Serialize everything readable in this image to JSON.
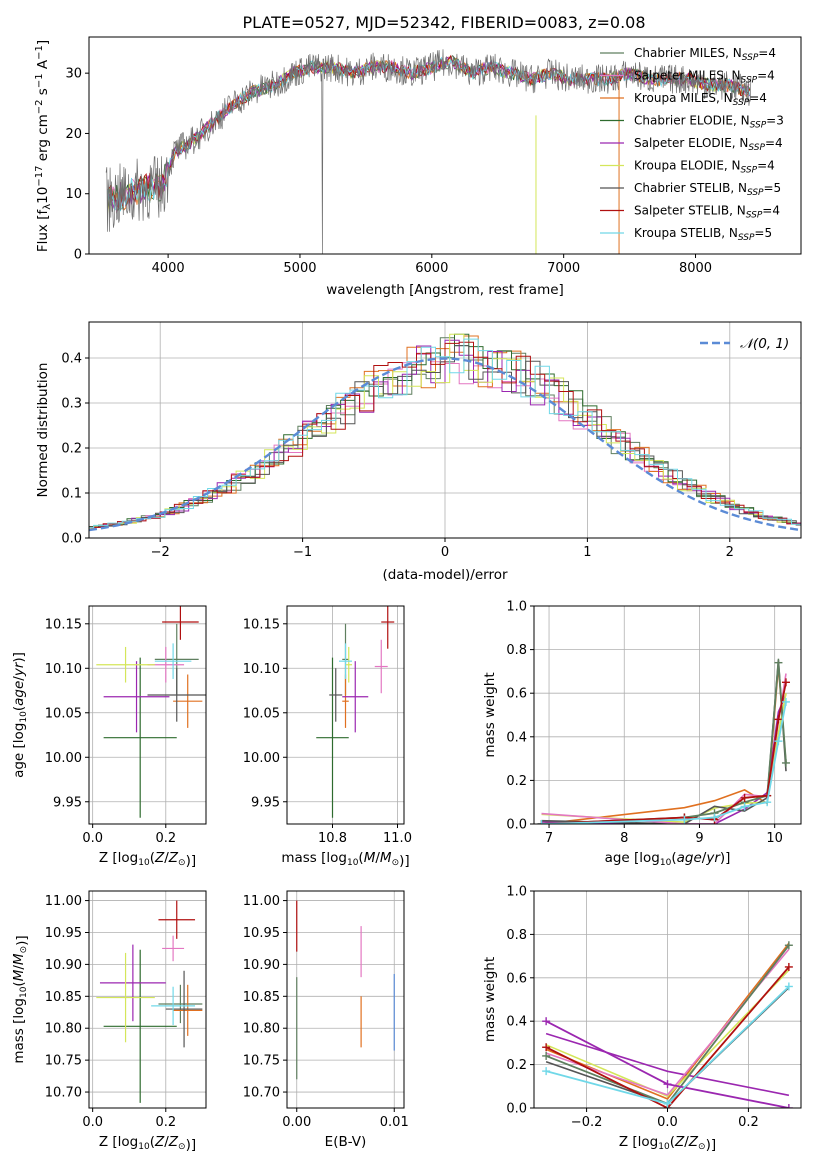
{
  "title": "PLATE=0527, MJD=52342, FIBERID=0083, z=0.08",
  "legend": [
    {
      "label": "Chabrier MILES, N",
      "sub": "SSP",
      "tail": "=4",
      "color": "#5f7f5f"
    },
    {
      "label": "Salpeter MILES, N",
      "sub": "SSP",
      "tail": "=4",
      "color": "#e377c2"
    },
    {
      "label": "Kroupa MILES, N",
      "sub": "SSP",
      "tail": "=4",
      "color": "#e07020"
    },
    {
      "label": "Chabrier ELODIE, N",
      "sub": "SSP",
      "tail": "=3",
      "color": "#2e6b2e"
    },
    {
      "label": "Salpeter ELODIE, N",
      "sub": "SSP",
      "tail": "=4",
      "color": "#9b27b0"
    },
    {
      "label": "Kroupa ELODIE, N",
      "sub": "SSP",
      "tail": "=4",
      "color": "#d4e65a"
    },
    {
      "label": "Chabrier STELIB, N",
      "sub": "SSP",
      "tail": "=5",
      "color": "#555555"
    },
    {
      "label": "Salpeter STELIB, N",
      "sub": "SSP",
      "tail": "=4",
      "color": "#b01010"
    },
    {
      "label": "Kroupa STELIB, N",
      "sub": "SSP",
      "tail": "=5",
      "color": "#70d8e8"
    }
  ],
  "panels": {
    "spectrum": {
      "xlabel": "wavelength [Angstrom, rest frame]",
      "ylabel_pre": "Flux [f",
      "ylabel_lam": "λ",
      "ylabel_post": "10",
      "ylabel_exp1": "−17",
      "ylabel_mid": " erg cm",
      "ylabel_exp2": "−2",
      "ylabel_mid2": " s",
      "ylabel_exp3": "−1",
      "ylabel_mid3": " A",
      "ylabel_exp4": "−1",
      "ylabel_end": "]",
      "xticks": [
        "4000",
        "5000",
        "6000",
        "7000",
        "8000"
      ],
      "yticks": [
        "0",
        "10",
        "20",
        "30"
      ]
    },
    "residuals": {
      "xlabel": "(data-model)/error",
      "ylabel": "Normed distribution",
      "legend": "𝒩(0, 1)",
      "xticks": [
        "−2",
        "−1",
        "0",
        "1",
        "2"
      ],
      "yticks": [
        "0.0",
        "0.1",
        "0.2",
        "0.3",
        "0.4"
      ]
    },
    "age_Z": {
      "xlabel": "Z [log",
      "ylabel": "age  [log",
      "xticks": [
        "0.0",
        "0.2"
      ],
      "yticks": [
        "9.95",
        "10.00",
        "10.05",
        "10.10",
        "10.15"
      ]
    },
    "age_mass": {
      "xlabel": "mass [log",
      "xticks": [
        "10.8",
        "11.0"
      ],
      "yticks": [
        "9.95",
        "10.00",
        "10.05",
        "10.10",
        "10.15"
      ]
    },
    "weight_age": {
      "xlabel": "age  [log",
      "ylabel": "mass weight",
      "xticks": [
        "7",
        "8",
        "9",
        "10"
      ],
      "yticks": [
        "0.0",
        "0.2",
        "0.4",
        "0.6",
        "0.8",
        "1.0"
      ]
    },
    "mass_Z": {
      "xlabel": "Z [log",
      "ylabel": "mass [log",
      "xticks": [
        "0.0",
        "0.2"
      ],
      "yticks": [
        "10.70",
        "10.75",
        "10.80",
        "10.85",
        "10.90",
        "10.95",
        "11.00"
      ]
    },
    "mass_ebv": {
      "xlabel": "E(B-V)",
      "xticks": [
        "0.00",
        "0.01"
      ],
      "yticks": [
        "10.70",
        "10.75",
        "10.80",
        "10.85",
        "10.90",
        "10.95",
        "11.00"
      ]
    },
    "weight_Z": {
      "xlabel": "Z [log",
      "ylabel": "mass weight",
      "xticks": [
        "−0.2",
        "0.0",
        "0.2"
      ],
      "yticks": [
        "0.0",
        "0.2",
        "0.4",
        "0.6",
        "0.8",
        "1.0"
      ]
    }
  },
  "chart_data": [
    {
      "type": "line",
      "title": "PLATE=0527, MJD=52342, FIBERID=0083, z=0.08",
      "xlim": [
        3400,
        8800
      ],
      "ylim": [
        0,
        36
      ],
      "x": [
        3550,
        3700,
        3850,
        3950,
        4050,
        4200,
        4350,
        4500,
        4650,
        4800,
        4950,
        5100,
        5250,
        5400,
        5550,
        5700,
        5850,
        6000,
        6150,
        6300,
        6450,
        6600,
        6750,
        6900,
        7050,
        7200,
        7350,
        7500,
        7650,
        7800,
        7950,
        8100,
        8250,
        8400
      ],
      "series": [
        {
          "name": "data",
          "values": [
            9,
            10,
            11,
            11,
            17,
            19,
            22,
            25,
            27,
            28,
            30,
            31,
            31,
            30,
            31,
            31,
            30,
            31,
            32,
            30,
            31,
            30,
            29,
            30,
            29,
            29,
            29,
            30,
            29,
            29,
            29,
            28,
            28,
            27
          ]
        }
      ]
    },
    {
      "type": "line",
      "xlim": [
        -2.5,
        2.5
      ],
      "ylim": [
        0,
        0.48
      ],
      "x": [
        -2.5,
        -2.0,
        -1.5,
        -1.0,
        -0.5,
        0.0,
        0.5,
        1.0,
        1.5,
        2.0,
        2.5
      ],
      "series": [
        {
          "name": "𝒩(0, 1)",
          "values": [
            0.018,
            0.054,
            0.13,
            0.242,
            0.352,
            0.399,
            0.352,
            0.242,
            0.13,
            0.054,
            0.018
          ]
        }
      ]
    },
    {
      "type": "scatter",
      "xlim": [
        -0.01,
        0.31
      ],
      "ylim": [
        9.925,
        10.17
      ],
      "points": [
        {
          "x": 0.23,
          "y": 10.11,
          "xerr": 0.06,
          "yerr": 0.04
        },
        {
          "x": 0.2,
          "y": 10.104,
          "xerr": 0.05,
          "yerr": 0.02
        },
        {
          "x": 0.26,
          "y": 10.063,
          "xerr": 0.04,
          "yerr": 0.03
        },
        {
          "x": 0.13,
          "y": 10.022,
          "xerr": 0.1,
          "yerr": 0.09
        },
        {
          "x": 0.12,
          "y": 10.068,
          "xerr": 0.09,
          "yerr": 0.04
        },
        {
          "x": 0.09,
          "y": 10.104,
          "xerr": 0.08,
          "yerr": 0.02
        },
        {
          "x": 0.23,
          "y": 10.07,
          "xerr": 0.08,
          "yerr": 0.03
        },
        {
          "x": 0.24,
          "y": 10.152,
          "xerr": 0.05,
          "yerr": 0.02
        },
        {
          "x": 0.22,
          "y": 10.108,
          "xerr": 0.05,
          "yerr": 0.02
        }
      ]
    },
    {
      "type": "scatter",
      "xlim": [
        10.66,
        11.02
      ],
      "ylim": [
        9.925,
        10.17
      ],
      "points": [
        {
          "x": 10.84,
          "y": 10.11,
          "xerr": 0.01,
          "yerr": 0.04
        },
        {
          "x": 10.95,
          "y": 10.102,
          "xerr": 0.02,
          "yerr": 0.03
        },
        {
          "x": 10.84,
          "y": 10.063,
          "xerr": 0.01,
          "yerr": 0.03
        },
        {
          "x": 10.8,
          "y": 10.022,
          "xerr": 0.05,
          "yerr": 0.09
        },
        {
          "x": 10.87,
          "y": 10.068,
          "xerr": 0.04,
          "yerr": 0.04
        },
        {
          "x": 10.85,
          "y": 10.104,
          "xerr": 0.01,
          "yerr": 0.02
        },
        {
          "x": 10.81,
          "y": 10.07,
          "xerr": 0.02,
          "yerr": 0.03
        },
        {
          "x": 10.97,
          "y": 10.152,
          "xerr": 0.02,
          "yerr": 0.03
        },
        {
          "x": 10.84,
          "y": 10.108,
          "xerr": 0.02,
          "yerr": 0.02
        }
      ]
    },
    {
      "type": "line",
      "xlim": [
        6.8,
        10.35
      ],
      "ylim": [
        0,
        1.0
      ],
      "x": [
        6.9,
        8.8,
        9.2,
        9.6,
        9.9,
        10.05,
        10.15
      ],
      "series": [
        {
          "name": "Chabrier MILES",
          "values": [
            0.0,
            0.03,
            0.05,
            0.1,
            0.13,
            0.74,
            0.28
          ]
        },
        {
          "name": "Salpeter STELIB",
          "values": [
            0.0,
            0.03,
            0.02,
            0.12,
            0.13,
            0.48,
            0.65
          ]
        },
        {
          "name": "Kroupa STELIB",
          "values": [
            0.0,
            0.02,
            0.03,
            0.08,
            0.1,
            0.38,
            0.56
          ]
        }
      ]
    },
    {
      "type": "scatter",
      "xlim": [
        -0.01,
        0.31
      ],
      "ylim": [
        10.675,
        11.015
      ],
      "points": [
        {
          "x": 0.24,
          "y": 10.838,
          "xerr": 0.06,
          "yerr": 0.03
        },
        {
          "x": 0.22,
          "y": 10.925,
          "xerr": 0.03,
          "yerr": 0.02
        },
        {
          "x": 0.26,
          "y": 10.828,
          "xerr": 0.04,
          "yerr": 0.04
        },
        {
          "x": 0.13,
          "y": 10.803,
          "xerr": 0.1,
          "yerr": 0.12
        },
        {
          "x": 0.11,
          "y": 10.871,
          "xerr": 0.09,
          "yerr": 0.06
        },
        {
          "x": 0.09,
          "y": 10.848,
          "xerr": 0.08,
          "yerr": 0.07
        },
        {
          "x": 0.25,
          "y": 10.83,
          "xerr": 0.05,
          "yerr": 0.06
        },
        {
          "x": 0.23,
          "y": 10.97,
          "xerr": 0.05,
          "yerr": 0.03
        },
        {
          "x": 0.22,
          "y": 10.835,
          "xerr": 0.06,
          "yerr": 0.03
        }
      ]
    },
    {
      "type": "scatter",
      "xlim": [
        -0.001,
        0.011
      ],
      "ylim": [
        10.675,
        11.015
      ],
      "points": [
        {
          "x": 0.0,
          "y": 10.8,
          "yerr": 0.08
        },
        {
          "x": 0.0,
          "y": 10.96,
          "yerr": 0.04
        },
        {
          "x": 0.0066,
          "y": 10.92,
          "yerr": 0.04
        },
        {
          "x": 0.0066,
          "y": 10.81,
          "yerr": 0.04
        },
        {
          "x": 0.01,
          "y": 10.825,
          "yerr": 0.06
        }
      ]
    },
    {
      "type": "line",
      "xlim": [
        -0.33,
        0.33
      ],
      "ylim": [
        0,
        1.0
      ],
      "x": [
        -0.3,
        0.0,
        0.3
      ],
      "series": [
        {
          "name": "Chabrier MILES",
          "values": [
            0.24,
            0.02,
            0.75
          ]
        },
        {
          "name": "Salpeter ELODIE",
          "values": [
            0.4,
            0.11,
            0.0
          ]
        },
        {
          "name": "Salpeter STELIB",
          "values": [
            0.28,
            0.0,
            0.65
          ]
        },
        {
          "name": "Kroupa STELIB",
          "values": [
            0.17,
            0.02,
            0.56
          ]
        }
      ]
    }
  ]
}
